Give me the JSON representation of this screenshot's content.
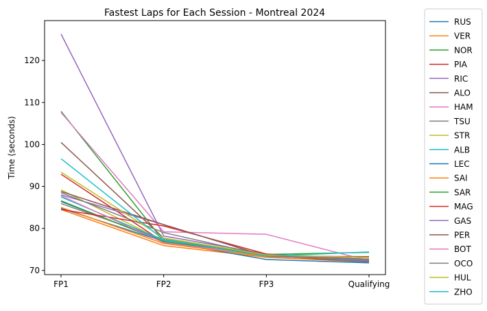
{
  "chart_data": {
    "type": "line",
    "title": "Fastest Laps for Each Session - Montreal 2024",
    "xlabel": "",
    "ylabel": "Time (seconds)",
    "categories": [
      "FP1",
      "FP2",
      "FP3",
      "Qualifying"
    ],
    "ylim": [
      69,
      129.5
    ],
    "yticks": [
      70,
      80,
      90,
      100,
      110,
      120
    ],
    "grid": false,
    "legend_position": "outside-right",
    "series": [
      {
        "name": "RUS",
        "color": "#1f77b4",
        "values": [
          86.4,
          77.0,
          73.7,
          72.0
        ]
      },
      {
        "name": "VER",
        "color": "#ff7f0e",
        "values": [
          84.5,
          75.9,
          73.1,
          72.0
        ]
      },
      {
        "name": "NOR",
        "color": "#2ca02c",
        "values": [
          107.9,
          77.0,
          73.5,
          72.0
        ]
      },
      {
        "name": "PIA",
        "color": "#d62728",
        "values": [
          92.9,
          76.7,
          73.5,
          72.1
        ]
      },
      {
        "name": "RIC",
        "color": "#9467bd",
        "values": [
          126.3,
          78.2,
          73.9,
          72.0
        ]
      },
      {
        "name": "ALO",
        "color": "#8c564b",
        "values": [
          100.5,
          77.7,
          73.7,
          72.3
        ]
      },
      {
        "name": "HAM",
        "color": "#e377c2",
        "values": [
          107.6,
          79.2,
          78.6,
          72.3
        ]
      },
      {
        "name": "TSU",
        "color": "#7f7f7f",
        "values": [
          85.9,
          77.4,
          73.6,
          72.3
        ]
      },
      {
        "name": "STR",
        "color": "#bcbd22",
        "values": [
          89.2,
          77.0,
          73.3,
          72.6
        ]
      },
      {
        "name": "ALB",
        "color": "#17becf",
        "values": [
          87.5,
          77.2,
          73.4,
          72.5
        ]
      },
      {
        "name": "LEC",
        "color": "#1f77b4",
        "values": [
          84.8,
          76.9,
          72.6,
          71.8
        ]
      },
      {
        "name": "SAI",
        "color": "#ff7f0e",
        "values": [
          85.0,
          76.4,
          73.3,
          72.7
        ]
      },
      {
        "name": "SAR",
        "color": "#2ca02c",
        "values": [
          86.6,
          76.8,
          73.8,
          74.3
        ]
      },
      {
        "name": "MAG",
        "color": "#d62728",
        "values": [
          84.5,
          80.6,
          73.9,
          72.6
        ]
      },
      {
        "name": "GAS",
        "color": "#9467bd",
        "values": [
          88.0,
          80.9,
          73.4,
          72.6
        ]
      },
      {
        "name": "PER",
        "color": "#8c564b",
        "values": [
          88.8,
          80.9,
          73.4,
          73.3
        ]
      },
      {
        "name": "BOT",
        "color": "#e377c2",
        "values": [
          87.8,
          76.6,
          73.6,
          73.0
        ]
      },
      {
        "name": "OCO",
        "color": "#7f7f7f",
        "values": [
          88.5,
          79.0,
          73.5,
          72.6
        ]
      },
      {
        "name": "HUL",
        "color": "#bcbd22",
        "values": [
          93.4,
          77.7,
          73.7,
          73.1
        ]
      },
      {
        "name": "ZHO",
        "color": "#17becf",
        "values": [
          96.6,
          77.3,
          73.4,
          74.4
        ]
      }
    ]
  }
}
